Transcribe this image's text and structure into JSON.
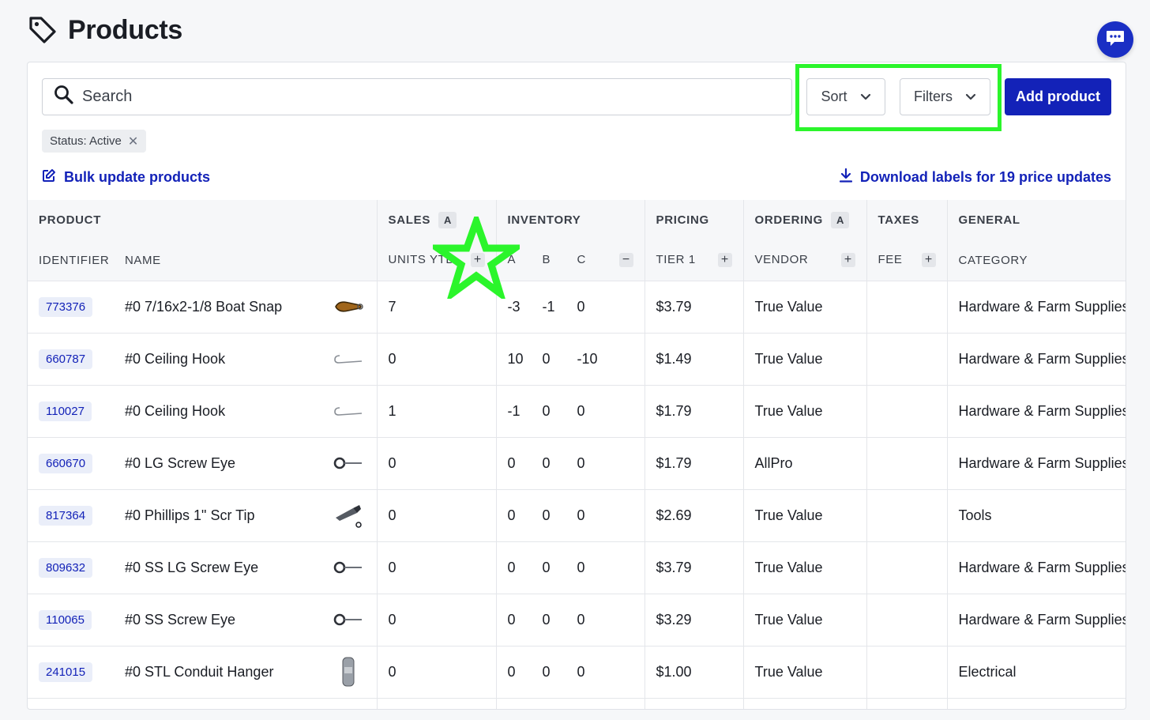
{
  "page": {
    "title": "Products",
    "title_icon": "tag-icon"
  },
  "chat": {
    "icon": "chat-icon"
  },
  "toolbar": {
    "search_placeholder": "Search",
    "sort_label": "Sort",
    "filters_label": "Filters",
    "add_label": "Add product",
    "highlight_color": "#2bf52b",
    "accent_color": "#1322b8"
  },
  "filter_chip": {
    "label": "Status: Active"
  },
  "links": {
    "bulk_update": "Bulk update products",
    "download_labels": "Download labels for 19 price updates"
  },
  "table": {
    "groups": {
      "product": "PRODUCT",
      "sales": "SALES",
      "sales_badge": "A",
      "inventory": "INVENTORY",
      "pricing": "PRICING",
      "ordering": "ORDERING",
      "ordering_badge": "A",
      "taxes": "TAXES",
      "general": "GENERAL"
    },
    "columns": {
      "identifier": "IDENTIFIER",
      "name": "NAME",
      "units_ytd": "UNITS YTD",
      "inv_a": "A",
      "inv_b": "B",
      "inv_c": "C",
      "tier1": "TIER 1",
      "vendor": "VENDOR",
      "fee": "FEE",
      "category": "CATEGORY"
    },
    "rows": [
      {
        "id": "773376",
        "name": "#0 7/16x2-1/8 Boat Snap",
        "thumb": "boat-snap",
        "units": "7",
        "a": "-3",
        "b": "-1",
        "c": "0",
        "tier1": "$3.79",
        "vendor": "True Value",
        "fee": "",
        "category": "Hardware & Farm Supplies"
      },
      {
        "id": "660787",
        "name": "#0 Ceiling Hook",
        "thumb": "ceiling-hook",
        "units": "0",
        "a": "10",
        "b": "0",
        "c": "-10",
        "tier1": "$1.49",
        "vendor": "True Value",
        "fee": "",
        "category": "Hardware & Farm Supplies"
      },
      {
        "id": "110027",
        "name": "#0 Ceiling Hook",
        "thumb": "ceiling-hook",
        "units": "1",
        "a": "-1",
        "b": "0",
        "c": "0",
        "tier1": "$1.79",
        "vendor": "True Value",
        "fee": "",
        "category": "Hardware & Farm Supplies"
      },
      {
        "id": "660670",
        "name": "#0 LG Screw Eye",
        "thumb": "screw-eye",
        "units": "0",
        "a": "0",
        "b": "0",
        "c": "0",
        "tier1": "$1.79",
        "vendor": "AllPro",
        "fee": "",
        "category": "Hardware & Farm Supplies"
      },
      {
        "id": "817364",
        "name": "#0 Phillips 1\" Scr Tip",
        "thumb": "screw-tip",
        "units": "0",
        "a": "0",
        "b": "0",
        "c": "0",
        "tier1": "$2.69",
        "vendor": "True Value",
        "fee": "",
        "category": "Tools"
      },
      {
        "id": "809632",
        "name": "#0 SS LG Screw Eye",
        "thumb": "screw-eye",
        "units": "0",
        "a": "0",
        "b": "0",
        "c": "0",
        "tier1": "$3.79",
        "vendor": "True Value",
        "fee": "",
        "category": "Hardware & Farm Supplies"
      },
      {
        "id": "110065",
        "name": "#0 SS Screw Eye",
        "thumb": "screw-eye",
        "units": "0",
        "a": "0",
        "b": "0",
        "c": "0",
        "tier1": "$3.29",
        "vendor": "True Value",
        "fee": "",
        "category": "Hardware & Farm Supplies"
      },
      {
        "id": "241015",
        "name": "#0 STL Conduit Hanger",
        "thumb": "conduit-hanger",
        "units": "0",
        "a": "0",
        "b": "0",
        "c": "0",
        "tier1": "$1.00",
        "vendor": "True Value",
        "fee": "",
        "category": "Electrical"
      },
      {
        "id": "",
        "name": "",
        "thumb": "partial",
        "units": "",
        "a": "",
        "b": "",
        "c": "",
        "tier1": "",
        "vendor": "",
        "fee": "",
        "category": ""
      }
    ]
  }
}
